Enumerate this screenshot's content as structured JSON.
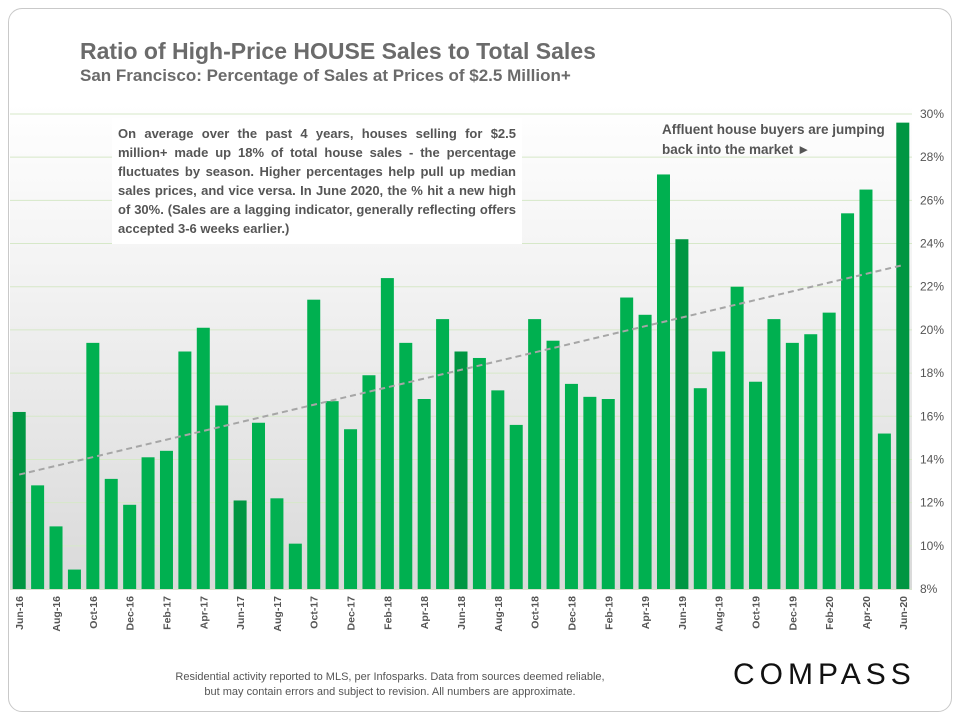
{
  "title": "Ratio of High-Price HOUSE Sales to Total Sales",
  "subtitle": "San Francisco: Percentage of Sales at Prices of $2.5 Million+",
  "note": "On average over the past 4 years, houses selling for $2.5 million+ made up 18% of total house sales - the percentage fluctuates by season. Higher percentages help pull up median sales prices, and vice versa. In June 2020, the % hit a new high of 30%. (Sales are a lagging indicator, generally reflecting offers accepted 3-6 weeks earlier.)",
  "annotation": "Affluent house buyers are jumping back into the market ►",
  "footer": [
    "Residential activity reported to MLS, per Infosparks. Data from sources deemed reliable,",
    "but may contain errors and subject to revision. All numbers are approximate."
  ],
  "logo": "COMPASS",
  "colors": {
    "bar": "#00b050",
    "bar_june": "#009642",
    "trend": "#a6a6a6",
    "grid": "#d6e8c8"
  },
  "chart_data": {
    "type": "bar",
    "categories": [
      "Jun-16",
      "Jul-16",
      "Aug-16",
      "Sep-16",
      "Oct-16",
      "Nov-16",
      "Dec-16",
      "Jan-17",
      "Feb-17",
      "Mar-17",
      "Apr-17",
      "May-17",
      "Jun-17",
      "Jul-17",
      "Aug-17",
      "Sep-17",
      "Oct-17",
      "Nov-17",
      "Dec-17",
      "Jan-18",
      "Feb-18",
      "Mar-18",
      "Apr-18",
      "May-18",
      "Jun-18",
      "Jul-18",
      "Aug-18",
      "Sep-18",
      "Oct-18",
      "Nov-18",
      "Dec-18",
      "Jan-19",
      "Feb-19",
      "Mar-19",
      "Apr-19",
      "May-19",
      "Jun-19",
      "Jul-19",
      "Aug-19",
      "Sep-19",
      "Oct-19",
      "Nov-19",
      "Dec-19",
      "Jan-20",
      "Feb-20",
      "Mar-20",
      "Apr-20",
      "May-20",
      "Jun-20"
    ],
    "tick_labels": [
      "Jun-16",
      "Aug-16",
      "Oct-16",
      "Dec-16",
      "Feb-17",
      "Apr-17",
      "Jun-17",
      "Aug-17",
      "Oct-17",
      "Dec-17",
      "Feb-18",
      "Apr-18",
      "Jun-18",
      "Aug-18",
      "Oct-18",
      "Dec-18",
      "Feb-19",
      "Apr-19",
      "Jun-19",
      "Aug-19",
      "Oct-19",
      "Dec-19",
      "Feb-20",
      "Apr-20",
      "Jun-20"
    ],
    "values": [
      16.2,
      12.8,
      10.9,
      8.9,
      19.4,
      13.1,
      11.9,
      14.1,
      14.4,
      19.0,
      20.1,
      16.5,
      12.1,
      15.7,
      12.2,
      10.1,
      21.4,
      16.7,
      15.4,
      17.9,
      22.4,
      19.4,
      16.8,
      20.5,
      19.0,
      18.7,
      17.2,
      15.6,
      20.5,
      19.5,
      17.5,
      16.9,
      16.8,
      21.5,
      20.7,
      27.2,
      24.2,
      17.3,
      19.0,
      22.0,
      17.6,
      20.5,
      19.4,
      19.8,
      20.8,
      25.4,
      26.5,
      15.2,
      29.6
    ],
    "highlighted": [
      "Jun-16",
      "Jun-17",
      "Jun-18",
      "Jun-19",
      "Jun-20"
    ],
    "trendline": {
      "start": 13.3,
      "end": 23.0
    },
    "ylim": [
      8,
      30
    ],
    "y_ticks": [
      "8%",
      "10%",
      "12%",
      "14%",
      "16%",
      "18%",
      "20%",
      "22%",
      "24%",
      "26%",
      "28%",
      "30%"
    ],
    "y_axis_position": "right",
    "grid": true
  }
}
